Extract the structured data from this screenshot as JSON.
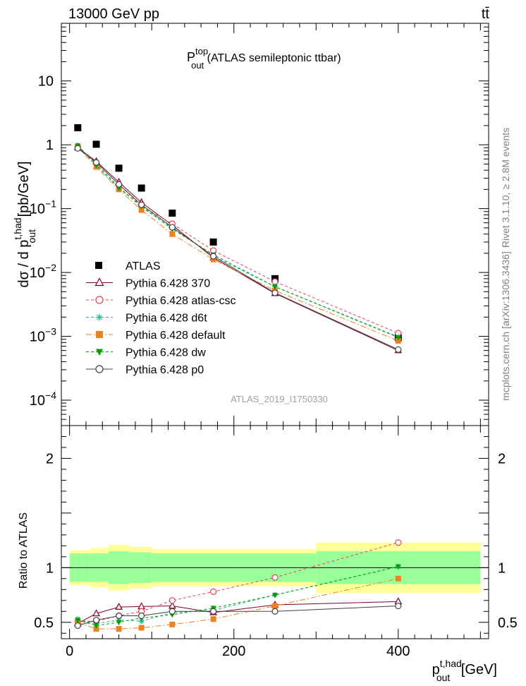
{
  "header": {
    "left": "13000 GeV pp",
    "right": "tt̄"
  },
  "title": {
    "main": "P",
    "sup": "top",
    "sub": "out",
    "rest": " (ATLAS semileptonic ttbar)"
  },
  "side_labels": {
    "rivet": "Rivet 3.1.10, ≥ 2.8M events",
    "mcplots": "mcplots.cern.ch [arXiv:1306.3436]"
  },
  "watermark": "ATLAS_2019_I1750330",
  "colors": {
    "atlas": "#000000",
    "p370": "#800020",
    "atlascsc": "#e8405a",
    "d6t": "#20b890",
    "default": "#f08020",
    "dw": "#00a000",
    "p0": "#404040",
    "band_inner": "#99ff99",
    "band_outer": "#ffff99"
  },
  "chart_data": [
    {
      "type": "scatter",
      "panel": "main",
      "ylabel": "dσ / d p_out^t,had [pb/GeV]",
      "yscale": "log",
      "ylim": [
        4e-05,
        80
      ],
      "xlim": [
        -10,
        510
      ],
      "yticks": [
        {
          "v": 0.0001,
          "base": "10",
          "exp": "−4"
        },
        {
          "v": 0.001,
          "base": "10",
          "exp": "−3"
        },
        {
          "v": 0.01,
          "base": "10",
          "exp": "−2"
        },
        {
          "v": 0.1,
          "base": "10",
          "exp": "−1"
        },
        {
          "v": 1,
          "base": "1",
          "exp": ""
        },
        {
          "v": 10,
          "base": "10",
          "exp": ""
        }
      ],
      "x": [
        10,
        32.5,
        60,
        87.5,
        125,
        175,
        250,
        400
      ],
      "series": [
        {
          "key": "atlas",
          "name": "ATLAS",
          "values": [
            1.85,
            1.02,
            0.43,
            0.21,
            0.085,
            0.03,
            0.008,
            0.00095
          ]
        },
        {
          "key": "p370",
          "name": "Pythia 6.428 370",
          "values": [
            0.9,
            0.55,
            0.26,
            0.125,
            0.055,
            0.017,
            0.0047,
            0.0006
          ]
        },
        {
          "key": "atlascsc",
          "name": "Pythia 6.428 atlas-csc",
          "values": [
            0.95,
            0.52,
            0.24,
            0.11,
            0.058,
            0.022,
            0.0072,
            0.00112
          ]
        },
        {
          "key": "d6t",
          "name": "Pythia 6.428 d6t",
          "values": [
            0.98,
            0.5,
            0.22,
            0.105,
            0.05,
            0.018,
            0.006,
            0.00098
          ]
        },
        {
          "key": "default",
          "name": "Pythia 6.428 default",
          "values": [
            0.92,
            0.45,
            0.2,
            0.095,
            0.04,
            0.016,
            0.0052,
            0.00085
          ]
        },
        {
          "key": "dw",
          "name": "Pythia 6.428 dw",
          "values": [
            0.96,
            0.48,
            0.21,
            0.11,
            0.048,
            0.019,
            0.006,
            0.00096
          ]
        },
        {
          "key": "p0",
          "name": "Pythia 6.428 p0",
          "values": [
            0.88,
            0.53,
            0.24,
            0.115,
            0.051,
            0.018,
            0.0048,
            0.00062
          ]
        }
      ],
      "legend": "lower-left"
    },
    {
      "type": "line",
      "panel": "ratio",
      "ylabel": "Ratio to ATLAS",
      "xlabel": "p_out^t,had [GeV]",
      "ylim": [
        0.35,
        2.3
      ],
      "xlim": [
        -10,
        510
      ],
      "xticks": [
        0,
        200,
        400
      ],
      "yticks": [
        0.5,
        1,
        2
      ],
      "x": [
        10,
        32.5,
        60,
        87.5,
        125,
        175,
        250,
        400
      ],
      "band_edges": [
        0,
        25,
        47.5,
        72.5,
        100,
        150,
        200,
        300,
        500
      ],
      "band_inner": [
        0.13,
        0.13,
        0.15,
        0.14,
        0.13,
        0.13,
        0.13,
        0.15
      ],
      "band_outer": [
        0.16,
        0.18,
        0.21,
        0.19,
        0.17,
        0.17,
        0.17,
        0.23
      ],
      "series": [
        {
          "key": "p370",
          "values": [
            0.49,
            0.58,
            0.64,
            0.645,
            0.65,
            0.59,
            0.66,
            0.69
          ]
        },
        {
          "key": "atlascsc",
          "values": [
            0.51,
            0.51,
            0.56,
            0.6,
            0.7,
            0.78,
            0.91,
            1.23
          ]
        },
        {
          "key": "d6t",
          "values": [
            0.53,
            0.49,
            0.52,
            0.51,
            0.59,
            0.61,
            0.75,
            1.01
          ]
        },
        {
          "key": "default",
          "values": [
            0.5,
            0.44,
            0.44,
            0.45,
            0.48,
            0.53,
            0.65,
            0.9
          ]
        },
        {
          "key": "dw",
          "values": [
            0.52,
            0.47,
            0.5,
            0.54,
            0.57,
            0.63,
            0.75,
            1.01
          ]
        },
        {
          "key": "p0",
          "values": [
            0.47,
            0.52,
            0.56,
            0.56,
            0.6,
            0.6,
            0.6,
            0.65
          ]
        }
      ]
    }
  ]
}
